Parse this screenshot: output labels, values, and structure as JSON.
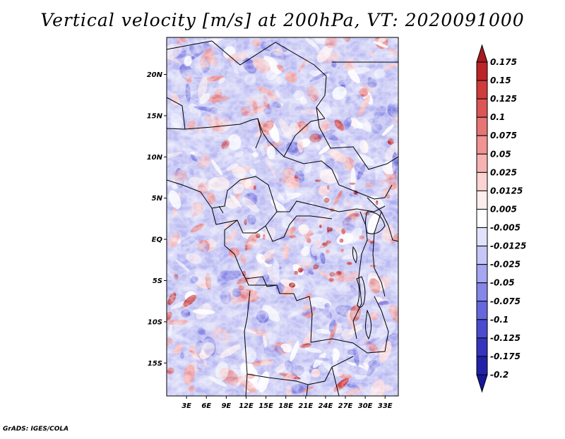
{
  "title": "Vertical velocity [m/s] at 200hPa, VT: 2020091000",
  "credit": "GrADS: IGES/COLA",
  "map": {
    "lat_labels": [
      "20N",
      "15N",
      "10N",
      "5N",
      "EQ",
      "5S",
      "10S",
      "15S"
    ],
    "lat_values": [
      20,
      15,
      10,
      5,
      0,
      -5,
      -10,
      -15
    ],
    "lon_labels": [
      "3E",
      "6E",
      "9E",
      "12E",
      "15E",
      "18E",
      "21E",
      "24E",
      "27E",
      "30E",
      "33E"
    ],
    "lon_values": [
      3,
      6,
      9,
      12,
      15,
      18,
      21,
      24,
      27,
      30,
      33
    ],
    "lon_range": [
      0,
      35
    ],
    "lat_range": [
      -19,
      24.5
    ]
  },
  "colorbar": {
    "labels": [
      "0.175",
      "0.15",
      "0.125",
      "0.1",
      "0.075",
      "0.05",
      "0.025",
      "0.0125",
      "0.005",
      "-0.005",
      "-0.0125",
      "-0.025",
      "-0.05",
      "-0.075",
      "-0.1",
      "-0.125",
      "-0.175",
      "-0.2"
    ],
    "colors": [
      "#a51b1f",
      "#bd2428",
      "#d03b3b",
      "#dd5656",
      "#e77575",
      "#f09393",
      "#f6b3b3",
      "#fbd3d3",
      "#feeded",
      "#ffffff",
      "#e2e2fc",
      "#c6c6f8",
      "#a6a6f1",
      "#8686e8",
      "#6767dd",
      "#4b4bcf",
      "#3434bd",
      "#2222a8",
      "#17179a"
    ]
  }
}
